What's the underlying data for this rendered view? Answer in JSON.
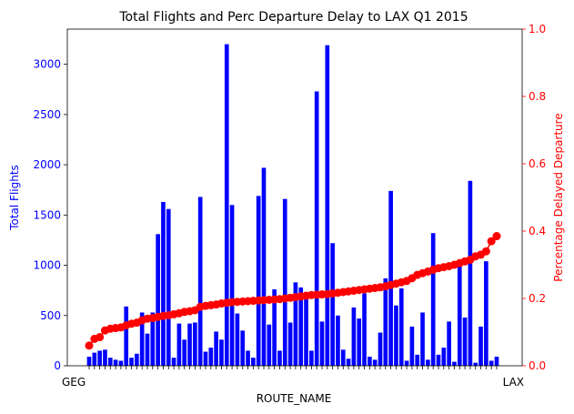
{
  "chart_data": {
    "type": "bar+line",
    "title": "Total Flights and Perc Departure Delay to LAX Q1 2015",
    "xlabel": "ROUTE_NAME",
    "ylabel_left": "Total Flights",
    "ylabel_right": "Percentage Delayed Departure",
    "ylim_left": [
      0,
      3350
    ],
    "ylim_right": [
      0,
      1.0
    ],
    "yticks_left": [
      "0",
      "500",
      "1000",
      "1500",
      "2000",
      "2500",
      "3000"
    ],
    "yticks_right": [
      "0.0",
      "0.2",
      "0.4",
      "0.6",
      "0.8",
      "1.0"
    ],
    "x_tick_first": "GEG",
    "x_tick_last": "LAX",
    "grid": false,
    "colors": {
      "bars": "#0000ff",
      "line": "#ff0000",
      "left_axis": "#0000ff",
      "right_axis": "#ff0000"
    },
    "series": [
      {
        "name": "Total Flights",
        "kind": "bar",
        "values": [
          90,
          130,
          150,
          160,
          80,
          60,
          50,
          590,
          80,
          120,
          530,
          320,
          530,
          1310,
          1630,
          1560,
          80,
          420,
          260,
          420,
          430,
          1680,
          140,
          180,
          340,
          260,
          3200,
          1600,
          520,
          350,
          150,
          80,
          1690,
          1970,
          410,
          760,
          150,
          1660,
          430,
          830,
          780,
          730,
          150,
          2730,
          440,
          3190,
          1220,
          500,
          160,
          70,
          580,
          470,
          720,
          90,
          60,
          330,
          870,
          1740,
          600,
          770,
          50,
          390,
          110,
          530,
          60,
          1320,
          110,
          180,
          440,
          40,
          990,
          480,
          1840,
          30,
          390,
          1040,
          50,
          90
        ]
      },
      {
        "name": "Percentage Delayed Departure",
        "kind": "line",
        "values": [
          0.06,
          0.08,
          0.085,
          0.105,
          0.11,
          0.112,
          0.114,
          0.12,
          0.125,
          0.128,
          0.135,
          0.14,
          0.142,
          0.145,
          0.148,
          0.15,
          0.153,
          0.156,
          0.16,
          0.162,
          0.165,
          0.175,
          0.178,
          0.18,
          0.182,
          0.185,
          0.187,
          0.189,
          0.19,
          0.191,
          0.192,
          0.193,
          0.194,
          0.195,
          0.196,
          0.197,
          0.198,
          0.2,
          0.202,
          0.204,
          0.206,
          0.208,
          0.21,
          0.211,
          0.212,
          0.213,
          0.215,
          0.217,
          0.219,
          0.221,
          0.223,
          0.225,
          0.227,
          0.229,
          0.231,
          0.233,
          0.236,
          0.24,
          0.244,
          0.248,
          0.252,
          0.26,
          0.27,
          0.275,
          0.28,
          0.285,
          0.29,
          0.293,
          0.296,
          0.3,
          0.305,
          0.31,
          0.315,
          0.325,
          0.33,
          0.34,
          0.37,
          0.385
        ]
      }
    ]
  }
}
